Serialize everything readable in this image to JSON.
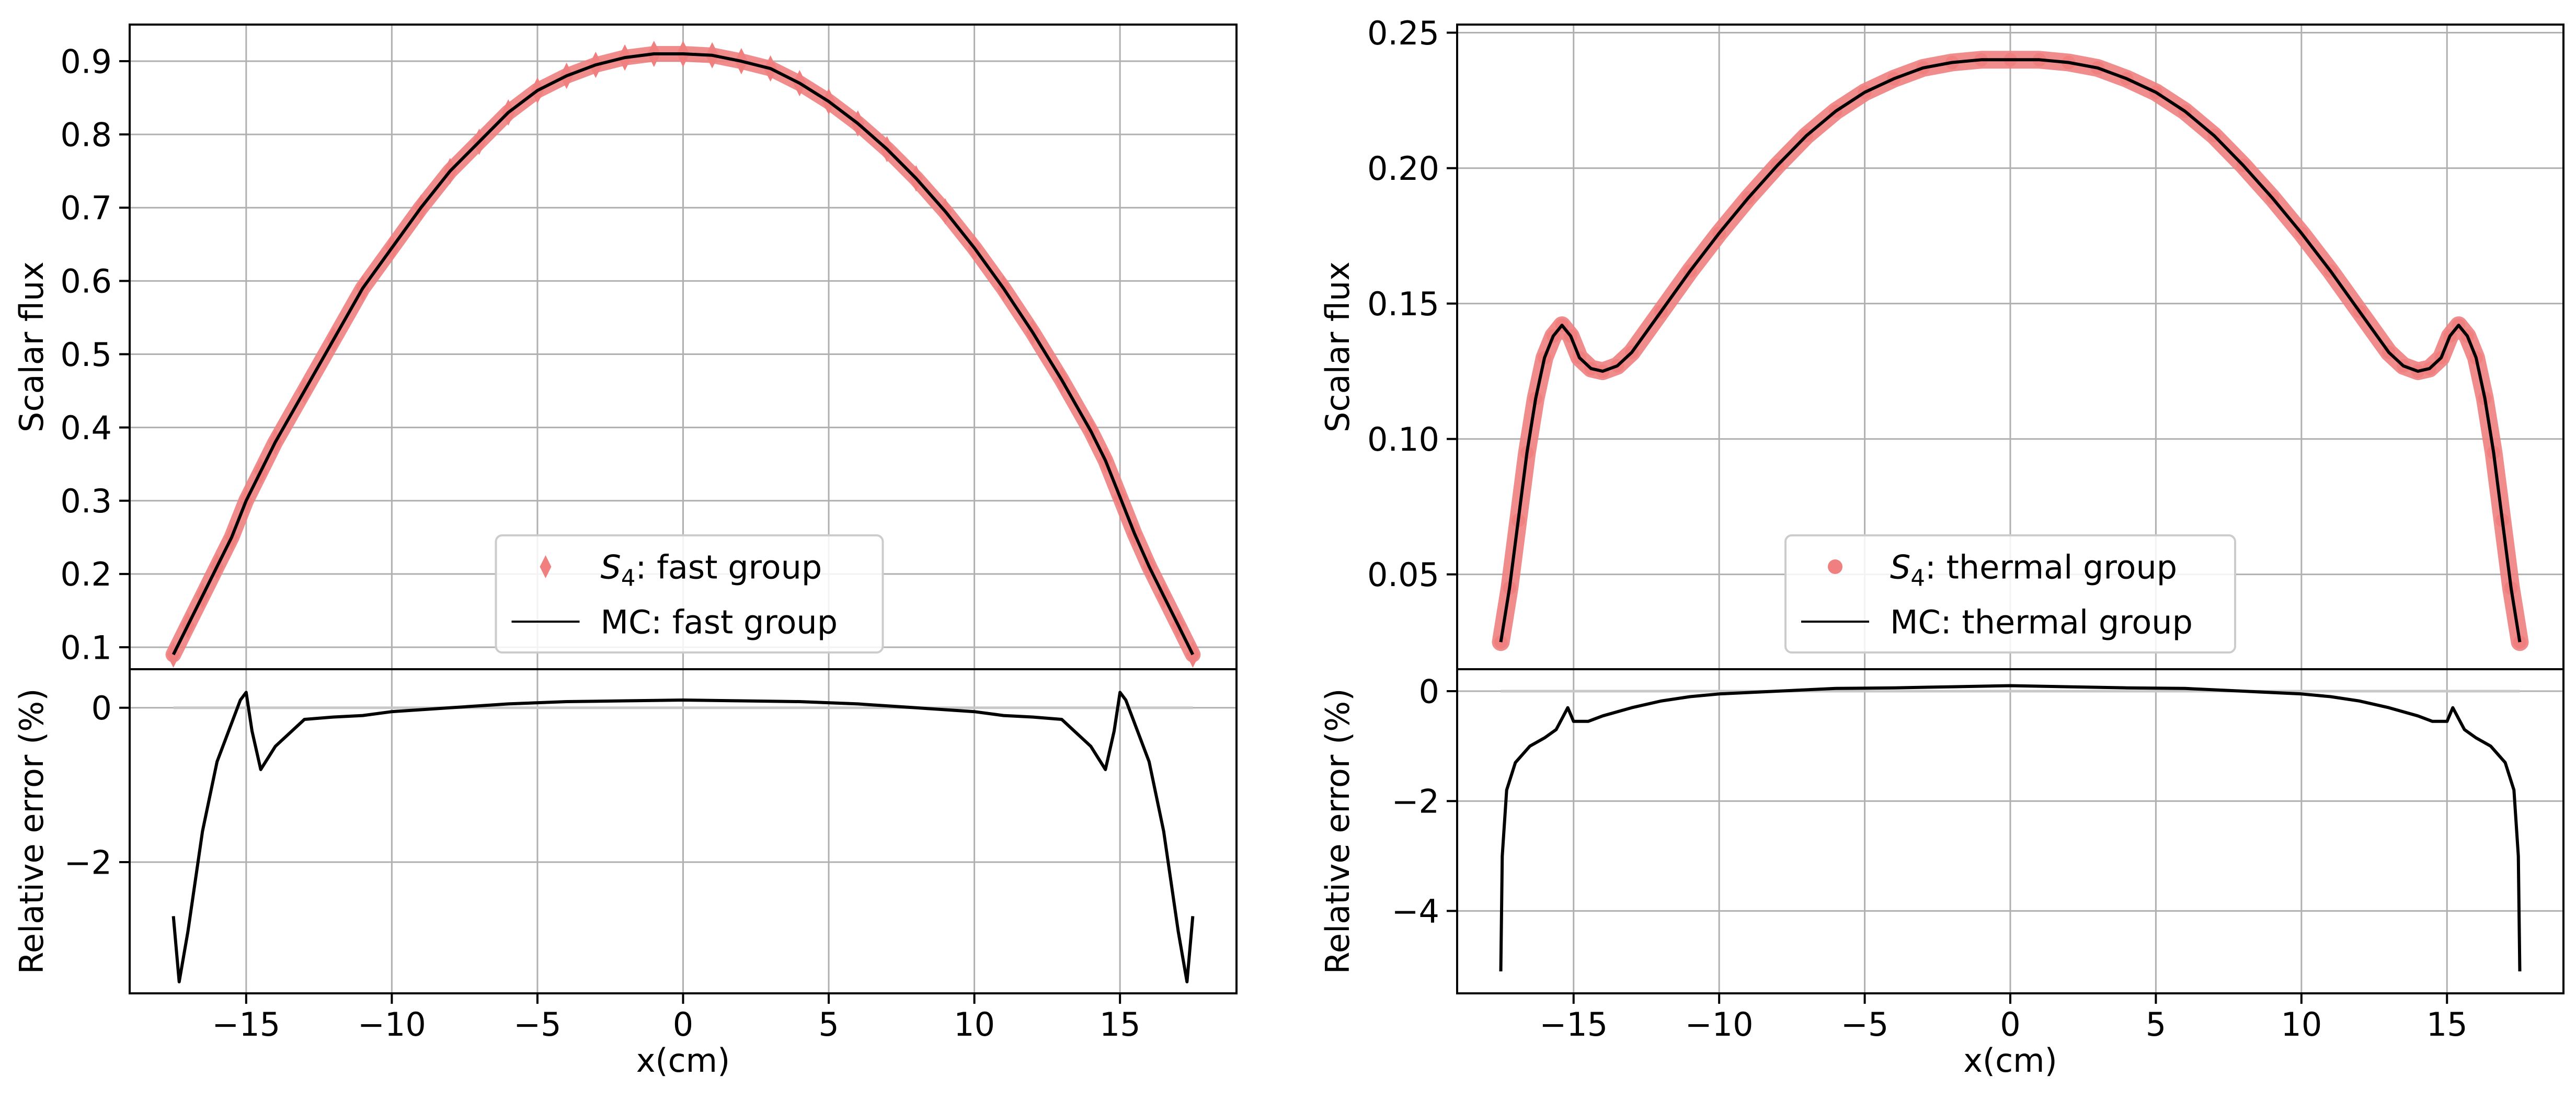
{
  "chart_data": [
    {
      "type": "line",
      "panel": "upper-left",
      "ylabel": "Scalar flux",
      "xlim": [
        -19.0,
        19.0
      ],
      "ylim": [
        0.07,
        0.95
      ],
      "yticks": [
        0.1,
        0.2,
        0.3,
        0.4,
        0.5,
        0.6,
        0.7,
        0.8,
        0.9
      ],
      "xticks": [
        -15,
        -10,
        -5,
        0,
        5,
        10,
        15
      ],
      "grid": true,
      "legend_position": "lower-center",
      "series": [
        {
          "name": "S4: fast group",
          "label_prefix": "S",
          "label_subscript": "4",
          "label_suffix": ": fast group",
          "marker": "diamond",
          "color": "#f08080",
          "x": [
            -17.5,
            -17.0,
            -16.5,
            -16.0,
            -15.5,
            -15.0,
            -14.5,
            -14.0,
            -13.0,
            -12.0,
            -11.0,
            -10.0,
            -9.0,
            -8.0,
            -7.0,
            -6.0,
            -5.0,
            -4.0,
            -3.0,
            -2.0,
            -1.0,
            0.0,
            1.0,
            2.0,
            3.0,
            4.0,
            5.0,
            6.0,
            7.0,
            8.0,
            9.0,
            10.0,
            11.0,
            12.0,
            13.0,
            14.0,
            14.5,
            15.0,
            15.5,
            16.0,
            16.5,
            17.0,
            17.5
          ],
          "y": [
            0.09,
            0.13,
            0.17,
            0.21,
            0.25,
            0.3,
            0.34,
            0.38,
            0.45,
            0.52,
            0.59,
            0.645,
            0.7,
            0.75,
            0.79,
            0.83,
            0.86,
            0.88,
            0.895,
            0.905,
            0.91,
            0.91,
            0.908,
            0.9,
            0.89,
            0.87,
            0.845,
            0.815,
            0.78,
            0.74,
            0.695,
            0.645,
            0.59,
            0.53,
            0.465,
            0.395,
            0.355,
            0.305,
            0.255,
            0.21,
            0.17,
            0.13,
            0.09
          ]
        },
        {
          "name": "MC: fast group",
          "marker": "line",
          "color": "#000000",
          "x": [
            -17.5,
            -17.0,
            -16.5,
            -16.0,
            -15.5,
            -15.0,
            -14.5,
            -14.0,
            -13.0,
            -12.0,
            -11.0,
            -10.0,
            -9.0,
            -8.0,
            -7.0,
            -6.0,
            -5.0,
            -4.0,
            -3.0,
            -2.0,
            -1.0,
            0.0,
            1.0,
            2.0,
            3.0,
            4.0,
            5.0,
            6.0,
            7.0,
            8.0,
            9.0,
            10.0,
            11.0,
            12.0,
            13.0,
            14.0,
            14.5,
            15.0,
            15.5,
            16.0,
            16.5,
            17.0,
            17.5
          ],
          "y": [
            0.09,
            0.13,
            0.17,
            0.21,
            0.25,
            0.3,
            0.34,
            0.38,
            0.45,
            0.52,
            0.59,
            0.645,
            0.7,
            0.75,
            0.79,
            0.83,
            0.86,
            0.88,
            0.895,
            0.905,
            0.91,
            0.91,
            0.908,
            0.9,
            0.89,
            0.87,
            0.845,
            0.815,
            0.78,
            0.74,
            0.695,
            0.645,
            0.59,
            0.53,
            0.465,
            0.395,
            0.355,
            0.305,
            0.255,
            0.21,
            0.17,
            0.13,
            0.09
          ]
        }
      ]
    },
    {
      "type": "line",
      "panel": "lower-left",
      "ylabel": "Relative error (%)",
      "xlabel": "x(cm)",
      "xlim": [
        -19.0,
        19.0
      ],
      "ylim": [
        -3.7,
        0.5
      ],
      "yticks": [
        -2,
        0
      ],
      "xticks": [
        -15,
        -10,
        -5,
        0,
        5,
        10,
        15
      ],
      "grid": true,
      "series": [
        {
          "name": "relative-error-fast",
          "color": "#000000",
          "x": [
            -17.5,
            -17.3,
            -17.0,
            -16.5,
            -16.0,
            -15.6,
            -15.2,
            -15.0,
            -14.8,
            -14.5,
            -14.0,
            -13.0,
            -12.0,
            -11.0,
            -10.0,
            -8.0,
            -6.0,
            -4.0,
            -2.0,
            0.0,
            2.0,
            4.0,
            6.0,
            8.0,
            10.0,
            11.0,
            12.0,
            13.0,
            14.0,
            14.5,
            14.8,
            15.0,
            15.2,
            15.6,
            16.0,
            16.5,
            17.0,
            17.3,
            17.5
          ],
          "y": [
            -2.7,
            -3.55,
            -2.9,
            -1.6,
            -0.7,
            -0.3,
            0.1,
            0.2,
            -0.3,
            -0.8,
            -0.5,
            -0.15,
            -0.12,
            -0.1,
            -0.05,
            0.0,
            0.05,
            0.08,
            0.09,
            0.1,
            0.09,
            0.08,
            0.05,
            0.0,
            -0.05,
            -0.1,
            -0.12,
            -0.15,
            -0.5,
            -0.8,
            -0.3,
            0.2,
            0.1,
            -0.3,
            -0.7,
            -1.6,
            -2.9,
            -3.55,
            -2.7
          ]
        }
      ]
    },
    {
      "type": "scatter",
      "panel": "upper-right",
      "ylabel": "Scalar flux",
      "xlim": [
        -19.0,
        19.0
      ],
      "ylim": [
        0.015,
        0.253
      ],
      "yticks": [
        0.05,
        0.1,
        0.15,
        0.2,
        0.25
      ],
      "ytick_labels": [
        "0.05",
        "0.10",
        "0.15",
        "0.20",
        "0.25"
      ],
      "xticks": [
        -15,
        -10,
        -5,
        0,
        5,
        10,
        15
      ],
      "grid": true,
      "legend_position": "lower-center",
      "series": [
        {
          "name": "S4: thermal group",
          "label_prefix": "S",
          "label_subscript": "4",
          "label_suffix": ": thermal group",
          "marker": "circle",
          "color": "#f08080",
          "x": [
            -17.5,
            -17.2,
            -16.9,
            -16.6,
            -16.3,
            -16.0,
            -15.7,
            -15.4,
            -15.1,
            -14.8,
            -14.4,
            -14.0,
            -13.5,
            -13.0,
            -12.0,
            -11.0,
            -10.0,
            -9.0,
            -8.0,
            -7.0,
            -6.0,
            -5.0,
            -4.0,
            -3.0,
            -2.0,
            -1.0,
            0.0,
            1.0,
            2.0,
            3.0,
            4.0,
            5.0,
            6.0,
            7.0,
            8.0,
            9.0,
            10.0,
            11.0,
            12.0,
            13.0,
            13.5,
            14.0,
            14.4,
            14.8,
            15.1,
            15.4,
            15.7,
            16.0,
            16.3,
            16.6,
            16.9,
            17.2,
            17.5
          ],
          "y": [
            0.025,
            0.045,
            0.07,
            0.095,
            0.115,
            0.13,
            0.138,
            0.142,
            0.138,
            0.13,
            0.126,
            0.125,
            0.127,
            0.132,
            0.147,
            0.162,
            0.176,
            0.189,
            0.201,
            0.212,
            0.221,
            0.228,
            0.233,
            0.237,
            0.239,
            0.24,
            0.24,
            0.24,
            0.239,
            0.237,
            0.233,
            0.228,
            0.221,
            0.212,
            0.201,
            0.189,
            0.176,
            0.162,
            0.147,
            0.132,
            0.127,
            0.125,
            0.126,
            0.13,
            0.138,
            0.142,
            0.138,
            0.13,
            0.115,
            0.095,
            0.07,
            0.045,
            0.025
          ]
        },
        {
          "name": "MC: thermal group",
          "marker": "line",
          "color": "#000000",
          "x": [
            -17.5,
            -17.2,
            -16.9,
            -16.6,
            -16.3,
            -16.0,
            -15.7,
            -15.4,
            -15.1,
            -14.8,
            -14.4,
            -14.0,
            -13.5,
            -13.0,
            -12.0,
            -11.0,
            -10.0,
            -9.0,
            -8.0,
            -7.0,
            -6.0,
            -5.0,
            -4.0,
            -3.0,
            -2.0,
            -1.0,
            0.0,
            1.0,
            2.0,
            3.0,
            4.0,
            5.0,
            6.0,
            7.0,
            8.0,
            9.0,
            10.0,
            11.0,
            12.0,
            13.0,
            13.5,
            14.0,
            14.4,
            14.8,
            15.1,
            15.4,
            15.7,
            16.0,
            16.3,
            16.6,
            16.9,
            17.2,
            17.5
          ],
          "y": [
            0.025,
            0.045,
            0.07,
            0.095,
            0.115,
            0.13,
            0.138,
            0.142,
            0.138,
            0.13,
            0.126,
            0.125,
            0.127,
            0.132,
            0.147,
            0.162,
            0.176,
            0.189,
            0.201,
            0.212,
            0.221,
            0.228,
            0.233,
            0.237,
            0.239,
            0.24,
            0.24,
            0.24,
            0.239,
            0.237,
            0.233,
            0.228,
            0.221,
            0.212,
            0.201,
            0.189,
            0.176,
            0.162,
            0.147,
            0.132,
            0.127,
            0.125,
            0.126,
            0.13,
            0.138,
            0.142,
            0.138,
            0.13,
            0.115,
            0.095,
            0.07,
            0.045,
            0.025
          ]
        }
      ]
    },
    {
      "type": "line",
      "panel": "lower-right",
      "ylabel": "Relative error (%)",
      "xlabel": "x(cm)",
      "xlim": [
        -19.0,
        19.0
      ],
      "ylim": [
        -5.5,
        0.4
      ],
      "yticks": [
        -4,
        -2,
        0
      ],
      "xticks": [
        -15,
        -10,
        -5,
        0,
        5,
        10,
        15
      ],
      "grid": true,
      "series": [
        {
          "name": "relative-error-thermal",
          "color": "#000000",
          "x": [
            -17.5,
            -17.45,
            -17.3,
            -17.0,
            -16.5,
            -16.0,
            -15.6,
            -15.4,
            -15.2,
            -15.0,
            -14.5,
            -14.0,
            -13.0,
            -12.0,
            -11.0,
            -10.0,
            -8.0,
            -6.0,
            -4.0,
            -2.0,
            0.0,
            2.0,
            4.0,
            6.0,
            8.0,
            10.0,
            11.0,
            12.0,
            13.0,
            14.0,
            14.5,
            15.0,
            15.2,
            15.4,
            15.6,
            16.0,
            16.5,
            17.0,
            17.3,
            17.45,
            17.5
          ],
          "y": [
            -5.1,
            -3.0,
            -1.8,
            -1.3,
            -1.0,
            -0.85,
            -0.7,
            -0.5,
            -0.3,
            -0.55,
            -0.55,
            -0.45,
            -0.3,
            -0.18,
            -0.1,
            -0.05,
            0.0,
            0.05,
            0.06,
            0.08,
            0.1,
            0.08,
            0.06,
            0.05,
            0.0,
            -0.05,
            -0.1,
            -0.18,
            -0.3,
            -0.45,
            -0.55,
            -0.55,
            -0.3,
            -0.5,
            -0.7,
            -0.85,
            -1.0,
            -1.3,
            -1.8,
            -3.0,
            -5.1
          ]
        }
      ]
    }
  ]
}
